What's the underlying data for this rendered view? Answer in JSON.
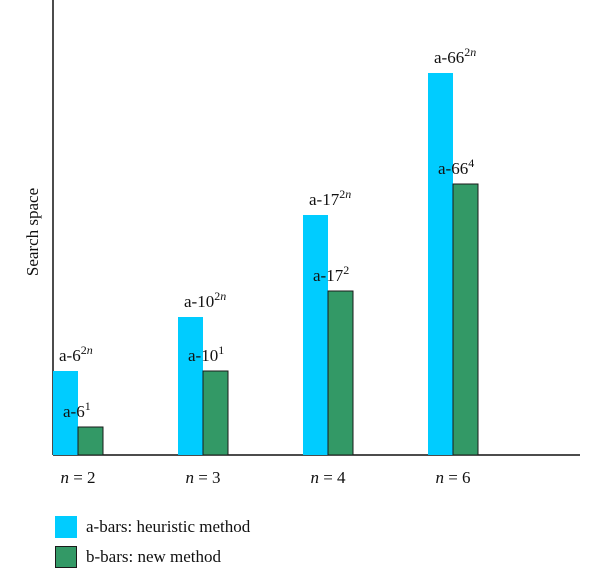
{
  "chart_data": {
    "type": "bar",
    "ylabel": "Search space",
    "xlabel": "",
    "categories": [
      "n = 2",
      "n = 3",
      "n = 4",
      "n = 6"
    ],
    "category_labels": [
      {
        "var": "n",
        "rest": " = 2"
      },
      {
        "var": "n",
        "rest": " = 3"
      },
      {
        "var": "n",
        "rest": " = 4"
      },
      {
        "var": "n",
        "rest": " = 6"
      }
    ],
    "series": [
      {
        "name": "a-bars: heuristic method",
        "color": "#00ccff",
        "values": [
          84,
          138,
          240,
          382
        ],
        "labels": [
          {
            "base": "a-6",
            "sup": "2n"
          },
          {
            "base": "a-10",
            "sup": "2n"
          },
          {
            "base": "a-17",
            "sup": "2n"
          },
          {
            "base": "a-66",
            "sup": "2n"
          }
        ]
      },
      {
        "name": "b-bars: new method",
        "color": "#339966",
        "values": [
          28,
          84,
          164,
          271
        ],
        "labels": [
          {
            "base": "a-6",
            "sup": "1"
          },
          {
            "base": "a-10",
            "sup": "1"
          },
          {
            "base": "a-17",
            "sup": "2"
          },
          {
            "base": "a-66",
            "sup": "4"
          }
        ]
      }
    ],
    "ylim": [
      0,
      455
    ],
    "grid": false,
    "legend_position": "bottom-left"
  },
  "legend": [
    {
      "label": "a-bars: heuristic method",
      "color": "#00ccff",
      "border": "#00ccff"
    },
    {
      "label": "b-bars: new method",
      "color": "#339966",
      "border": "#1a1a1a"
    }
  ]
}
